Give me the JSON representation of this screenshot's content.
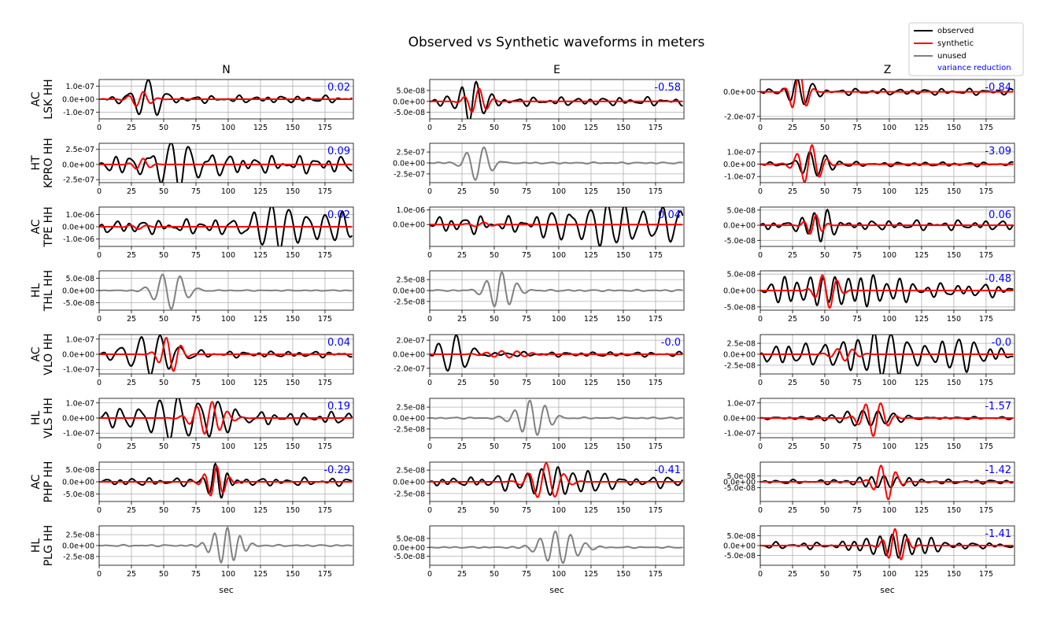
{
  "figure": {
    "title": "Observed vs Synthetic waveforms in meters",
    "xlabel": "sec"
  },
  "legend": {
    "placement": "top-right",
    "items": [
      {
        "label": "observed",
        "color": "#000000"
      },
      {
        "label": "synthetic",
        "color": "#ff0000"
      },
      {
        "label": "unused",
        "color": "#808080"
      },
      {
        "label": "variance reduction",
        "color": "#0000ff",
        "text_only": true
      }
    ]
  },
  "colors": {
    "observed": "#000000",
    "synthetic": "#ff0000",
    "unused": "#808080",
    "vr": "#0000ff",
    "grid": "#b0b0b0"
  },
  "columns": [
    "N",
    "E",
    "Z"
  ],
  "rows": [
    {
      "network": "AC",
      "station": "LSK HH"
    },
    {
      "network": "HT",
      "station": "KPRO HH"
    },
    {
      "network": "AC",
      "station": "TPE HH"
    },
    {
      "network": "HL",
      "station": "THL HH"
    },
    {
      "network": "AC",
      "station": "VLO HH"
    },
    {
      "network": "HL",
      "station": "VLS HH"
    },
    {
      "network": "AC",
      "station": "PHP HH"
    },
    {
      "network": "HL",
      "station": "PLG HH"
    }
  ],
  "chart_data": {
    "type": "line",
    "grid": true,
    "xlim": [
      0,
      197
    ],
    "x_ticks": [
      0,
      25,
      50,
      75,
      100,
      125,
      150,
      175
    ],
    "x_tick_labels": [
      "0",
      "25",
      "50",
      "75",
      "100",
      "125",
      "150",
      "175"
    ],
    "panels": [
      {
        "row": 0,
        "col": 0,
        "used": true,
        "vr": "0.02",
        "ylim": [
          -1.5e-07,
          1.5e-07
        ],
        "y_ticks": [
          1e-07,
          0,
          -1e-07
        ],
        "y_tick_labels": [
          "1.0e-07",
          "0.0e+00",
          "-1.0e-07"
        ],
        "observed": {
          "amp": 1.6e-07,
          "period": 14,
          "center": 38,
          "width": 12,
          "bg": 0.2,
          "seed": 1
        },
        "synthetic": {
          "amp": 6e-08,
          "period": 12,
          "center": 32,
          "width": 10,
          "seed": 2
        }
      },
      {
        "row": 0,
        "col": 1,
        "used": true,
        "vr": "-0.58",
        "ylim": [
          -8e-08,
          1e-07
        ],
        "y_ticks": [
          5e-08,
          0,
          -5e-08
        ],
        "y_tick_labels": [
          "5.0e-08",
          "0.0e+00",
          "-5.0e-08"
        ],
        "observed": {
          "amp": 9e-08,
          "period": 12,
          "center": 32,
          "width": 12,
          "bg": 0.25,
          "seed": 3
        },
        "synthetic": {
          "amp": 6e-08,
          "period": 12,
          "center": 37,
          "width": 10,
          "seed": 4
        }
      },
      {
        "row": 0,
        "col": 2,
        "used": true,
        "vr": "-0.84",
        "ylim": [
          -2.2e-07,
          1e-07
        ],
        "y_ticks": [
          0,
          -2e-07
        ],
        "y_tick_labels": [
          "0.0e+00",
          "-2.0e-07"
        ],
        "observed": {
          "amp": 1e-07,
          "period": 12,
          "center": 30,
          "width": 12,
          "bg": 0.3,
          "seed": 5
        },
        "synthetic": {
          "amp": 2e-07,
          "period": 12,
          "center": 30,
          "width": 8,
          "seed": 6
        }
      },
      {
        "row": 1,
        "col": 0,
        "used": true,
        "vr": "0.09",
        "ylim": [
          -3e-07,
          3.5e-07
        ],
        "y_ticks": [
          2.5e-07,
          0,
          -2.5e-07
        ],
        "y_tick_labels": [
          "2.5e-07",
          "0.0e+00",
          "-2.5e-07"
        ],
        "observed": {
          "amp": 3.3e-07,
          "period": 15,
          "center": 55,
          "width": 30,
          "bg": 0.5,
          "seed": 7
        },
        "synthetic": {
          "amp": 1e-07,
          "period": 12,
          "center": 33,
          "width": 8,
          "seed": 8
        }
      },
      {
        "row": 1,
        "col": 1,
        "used": false,
        "vr": "",
        "ylim": [
          -4.5e-07,
          4.5e-07
        ],
        "y_ticks": [
          2.5e-07,
          0,
          -2.5e-07
        ],
        "y_tick_labels": [
          "2.5e-07",
          "0.0e+00",
          "-2.5e-07"
        ],
        "observed": {
          "amp": 4e-07,
          "period": 14,
          "center": 38,
          "width": 12,
          "bg": 0.05,
          "seed": 9
        }
      },
      {
        "row": 1,
        "col": 2,
        "used": true,
        "vr": "-3.09",
        "ylim": [
          -1.5e-07,
          1.7e-07
        ],
        "y_ticks": [
          1e-07,
          0,
          -1e-07
        ],
        "y_tick_labels": [
          "1.0e-07",
          "0.0e+00",
          "-1.0e-07"
        ],
        "observed": {
          "amp": 1e-07,
          "period": 12,
          "center": 42,
          "width": 15,
          "bg": 0.2,
          "seed": 10
        },
        "synthetic": {
          "amp": 1.6e-07,
          "period": 12,
          "center": 38,
          "width": 12,
          "seed": 11
        }
      },
      {
        "row": 2,
        "col": 0,
        "used": true,
        "vr": "0.02",
        "ylim": [
          -1.6e-06,
          1.6e-06
        ],
        "y_ticks": [
          1e-06,
          0,
          -1e-06
        ],
        "y_tick_labels": [
          "1.0e-06",
          "0.0e+00",
          "-1.0e-06"
        ],
        "observed": {
          "amp": 1.5e-06,
          "period": 14,
          "center": 150,
          "width": 45,
          "bg": 0.45,
          "seed": 12
        },
        "synthetic": {
          "amp": 2e-07,
          "period": 14,
          "center": 30,
          "width": 10,
          "seed": 13
        }
      },
      {
        "row": 2,
        "col": 1,
        "used": true,
        "vr": "0.04",
        "ylim": [
          -1.5e-06,
          1.2e-06
        ],
        "y_ticks": [
          1e-06,
          0
        ],
        "y_tick_labels": [
          "1.0e-06",
          "0.0e+00"
        ],
        "observed": {
          "amp": 1.3e-06,
          "period": 14,
          "center": 145,
          "width": 50,
          "bg": 0.55,
          "seed": 14
        },
        "synthetic": {
          "amp": 1.5e-07,
          "period": 14,
          "center": 40,
          "width": 12,
          "seed": 15
        }
      },
      {
        "row": 2,
        "col": 2,
        "used": true,
        "vr": "0.06",
        "ylim": [
          -7e-08,
          6e-08
        ],
        "y_ticks": [
          5e-08,
          0,
          -5e-08
        ],
        "y_tick_labels": [
          "5.0e-08",
          "0.0e+00",
          "-5.0e-08"
        ],
        "observed": {
          "amp": 5.5e-08,
          "period": 10,
          "center": 48,
          "width": 12,
          "bg": 0.35,
          "seed": 16
        },
        "synthetic": {
          "amp": 3.5e-08,
          "period": 10,
          "center": 42,
          "width": 8,
          "seed": 17
        }
      },
      {
        "row": 3,
        "col": 0,
        "used": false,
        "vr": "",
        "ylim": [
          -8e-08,
          8e-08
        ],
        "y_ticks": [
          5e-08,
          0,
          -5e-08
        ],
        "y_tick_labels": [
          "5.0e-08",
          "0.0e+00",
          "-5.0e-08"
        ],
        "observed": {
          "amp": 7.5e-08,
          "period": 14,
          "center": 55,
          "width": 15,
          "bg": 0.03,
          "seed": 18
        }
      },
      {
        "row": 3,
        "col": 1,
        "used": false,
        "vr": "",
        "ylim": [
          -4.5e-08,
          4.5e-08
        ],
        "y_ticks": [
          2.5e-08,
          0,
          -2.5e-08
        ],
        "y_tick_labels": [
          "2.5e-08",
          "0.0e+00",
          "-2.5e-08"
        ],
        "observed": {
          "amp": 4.2e-08,
          "period": 12,
          "center": 55,
          "width": 14,
          "bg": 0.05,
          "seed": 19
        }
      },
      {
        "row": 3,
        "col": 2,
        "used": true,
        "vr": "-0.48",
        "ylim": [
          -6e-08,
          6e-08
        ],
        "y_ticks": [
          5e-08,
          0,
          -5e-08
        ],
        "y_tick_labels": [
          "5.0e-08",
          "0.0e+00",
          "-5.0e-08"
        ],
        "observed": {
          "amp": 5e-08,
          "period": 10,
          "center": 60,
          "width": 45,
          "bg": 0.5,
          "seed": 20
        },
        "synthetic": {
          "amp": 5.5e-08,
          "period": 12,
          "center": 52,
          "width": 10,
          "seed": 21
        }
      },
      {
        "row": 4,
        "col": 0,
        "used": true,
        "vr": "0.04",
        "ylim": [
          -1.3e-07,
          1.3e-07
        ],
        "y_ticks": [
          1e-07,
          0,
          -1e-07
        ],
        "y_tick_labels": [
          "1.0e-07",
          "0.0e+00",
          "-1.0e-07"
        ],
        "observed": {
          "amp": 1.2e-07,
          "period": 15,
          "center": 40,
          "width": 25,
          "bg": 0.2,
          "seed": 22
        },
        "synthetic": {
          "amp": 1.2e-07,
          "period": 12,
          "center": 55,
          "width": 10,
          "seed": 23
        }
      },
      {
        "row": 4,
        "col": 1,
        "used": true,
        "vr": "-0.0",
        "ylim": [
          -2.8e-07,
          2.8e-07
        ],
        "y_ticks": [
          2e-07,
          0,
          -2e-07
        ],
        "y_tick_labels": [
          "2.0e-07",
          "0.0e+00",
          "-2.0e-07"
        ],
        "observed": {
          "amp": 2.6e-07,
          "period": 14,
          "center": 20,
          "width": 15,
          "bg": 0.15,
          "seed": 24
        },
        "synthetic": {
          "amp": 5e-08,
          "period": 12,
          "center": 60,
          "width": 20,
          "seed": 25
        }
      },
      {
        "row": 4,
        "col": 2,
        "used": true,
        "vr": "-0.0",
        "ylim": [
          -4.5e-08,
          4.5e-08
        ],
        "y_ticks": [
          2.5e-08,
          0,
          -2.5e-08
        ],
        "y_tick_labels": [
          "2.5e-08",
          "0.0e+00",
          "-2.5e-08"
        ],
        "observed": {
          "amp": 3.8e-08,
          "period": 13,
          "center": 100,
          "width": 70,
          "bg": 0.6,
          "seed": 26
        },
        "synthetic": {
          "amp": 1.5e-08,
          "period": 12,
          "center": 65,
          "width": 12,
          "seed": 27
        }
      },
      {
        "row": 5,
        "col": 0,
        "used": true,
        "vr": "0.19",
        "ylim": [
          -1.3e-07,
          1.3e-07
        ],
        "y_ticks": [
          1e-07,
          0,
          -1e-07
        ],
        "y_tick_labels": [
          "1.0e-07",
          "0.0e+00",
          "-1.0e-07"
        ],
        "observed": {
          "amp": 1.2e-07,
          "period": 15,
          "center": 60,
          "width": 50,
          "bg": 0.4,
          "seed": 28
        },
        "synthetic": {
          "amp": 1.1e-07,
          "period": 12,
          "center": 85,
          "width": 15,
          "seed": 29
        }
      },
      {
        "row": 5,
        "col": 1,
        "used": false,
        "vr": "",
        "ylim": [
          -4.5e-08,
          4.5e-08
        ],
        "y_ticks": [
          2.5e-08,
          0,
          -2.5e-08
        ],
        "y_tick_labels": [
          "2.5e-08",
          "0.0e+00",
          "-2.5e-08"
        ],
        "observed": {
          "amp": 4.2e-08,
          "period": 12,
          "center": 80,
          "width": 15,
          "bg": 0.05,
          "seed": 30
        }
      },
      {
        "row": 5,
        "col": 2,
        "used": true,
        "vr": "-1.57",
        "ylim": [
          -1.3e-07,
          1.3e-07
        ],
        "y_ticks": [
          1e-07,
          0,
          -1e-07
        ],
        "y_tick_labels": [
          "1.0e-07",
          "0.0e+00",
          "-1.0e-07"
        ],
        "observed": {
          "amp": 5e-08,
          "period": 12,
          "center": 85,
          "width": 30,
          "bg": 0.2,
          "seed": 31
        },
        "synthetic": {
          "amp": 1.2e-07,
          "period": 12,
          "center": 88,
          "width": 12,
          "seed": 32
        }
      },
      {
        "row": 6,
        "col": 0,
        "used": true,
        "vr": "-0.29",
        "ylim": [
          -8e-08,
          8e-08
        ],
        "y_ticks": [
          5e-08,
          0,
          -5e-08
        ],
        "y_tick_labels": [
          "5.0e-08",
          "0.0e+00",
          "-5.0e-08"
        ],
        "observed": {
          "amp": 7.5e-08,
          "period": 10,
          "center": 92,
          "width": 10,
          "bg": 0.25,
          "seed": 33
        },
        "synthetic": {
          "amp": 6.5e-08,
          "period": 10,
          "center": 90,
          "width": 10,
          "seed": 34
        }
      },
      {
        "row": 6,
        "col": 1,
        "used": true,
        "vr": "-0.41",
        "ylim": [
          -4.2e-08,
          4.2e-08
        ],
        "y_ticks": [
          2.5e-08,
          0,
          -2.5e-08
        ],
        "y_tick_labels": [
          "2.5e-08",
          "0.0e+00",
          "-2.5e-08"
        ],
        "observed": {
          "amp": 2.5e-08,
          "period": 12,
          "center": 110,
          "width": 50,
          "bg": 0.5,
          "seed": 35
        },
        "synthetic": {
          "amp": 4e-08,
          "period": 14,
          "center": 90,
          "width": 15,
          "seed": 36
        }
      },
      {
        "row": 6,
        "col": 2,
        "used": true,
        "vr": "-1.42",
        "ylim": [
          -1.7e-07,
          1.7e-07
        ],
        "y_ticks": [
          5e-08,
          0,
          -5e-08
        ],
        "y_tick_labels": [
          "5.0e-08",
          "0.0e+00",
          "-5.0e-08"
        ],
        "observed": {
          "amp": 6e-08,
          "period": 10,
          "center": 95,
          "width": 25,
          "bg": 0.35,
          "seed": 37
        },
        "synthetic": {
          "amp": 1.6e-07,
          "period": 12,
          "center": 97,
          "width": 10,
          "seed": 38
        }
      },
      {
        "row": 7,
        "col": 0,
        "used": false,
        "vr": "",
        "ylim": [
          -4.5e-08,
          4.5e-08
        ],
        "y_ticks": [
          2.5e-08,
          0,
          -2.5e-08
        ],
        "y_tick_labels": [
          "2.5e-08",
          "0.0e+00",
          "-2.5e-08"
        ],
        "observed": {
          "amp": 4.2e-08,
          "period": 10,
          "center": 98,
          "width": 14,
          "bg": 0.05,
          "seed": 39
        }
      },
      {
        "row": 7,
        "col": 1,
        "used": false,
        "vr": "",
        "ylim": [
          -1e-07,
          1.2e-07
        ],
        "y_ticks": [
          5e-08,
          0,
          -5e-08
        ],
        "y_tick_labels": [
          "5.0e-08",
          "0.0e+00",
          "-5.0e-08"
        ],
        "observed": {
          "amp": 9e-08,
          "period": 12,
          "center": 100,
          "width": 18,
          "bg": 0.05,
          "seed": 40
        }
      },
      {
        "row": 7,
        "col": 2,
        "used": true,
        "vr": "-1.41",
        "ylim": [
          -1e-07,
          1e-07
        ],
        "y_ticks": [
          5e-08,
          0,
          -5e-08
        ],
        "y_tick_labels": [
          "5.0e-08",
          "0.0e+00",
          "-5.0e-08"
        ],
        "observed": {
          "amp": 5.5e-08,
          "period": 10,
          "center": 100,
          "width": 35,
          "bg": 0.35,
          "seed": 41
        },
        "synthetic": {
          "amp": 8.5e-08,
          "period": 10,
          "center": 105,
          "width": 10,
          "seed": 42
        }
      }
    ]
  }
}
